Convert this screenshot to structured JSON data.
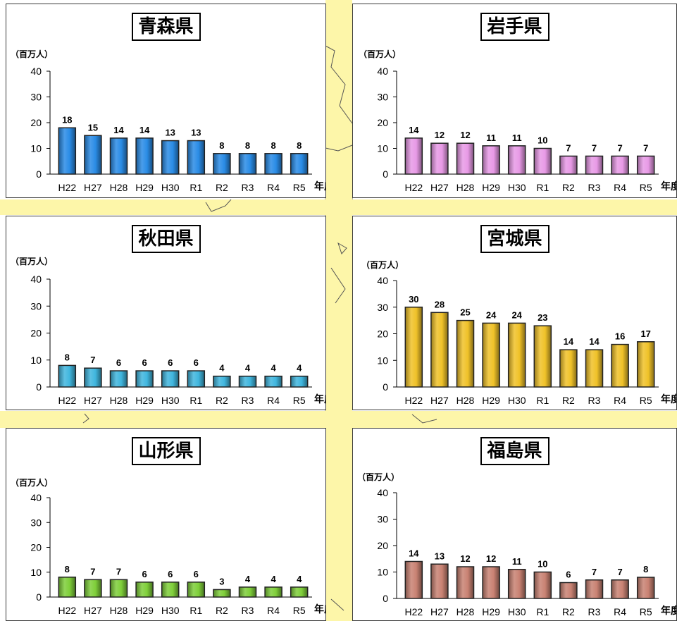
{
  "colors": {
    "background": "#ffffff",
    "map_land": "#fdf6a9",
    "bar_outline": "#222222"
  },
  "chart_data": [
    {
      "type": "bar",
      "title": "青森県",
      "unit": "（百万人）",
      "xlabel": "年度",
      "categories": [
        "H22",
        "H27",
        "H28",
        "H29",
        "H30",
        "R1",
        "R2",
        "R3",
        "R4",
        "R5"
      ],
      "values": [
        18,
        15,
        14,
        14,
        13,
        13,
        8,
        8,
        8,
        8
      ],
      "ylim": [
        0,
        40
      ],
      "yticks": [
        0,
        10,
        20,
        30,
        40
      ],
      "color": "#2a8ce6"
    },
    {
      "type": "bar",
      "title": "岩手県",
      "unit": "（百万人）",
      "xlabel": "年度",
      "categories": [
        "H22",
        "H27",
        "H28",
        "H29",
        "H30",
        "R1",
        "R2",
        "R3",
        "R4",
        "R5"
      ],
      "values": [
        14,
        12,
        12,
        11,
        11,
        10,
        7,
        7,
        7,
        7
      ],
      "ylim": [
        0,
        40
      ],
      "yticks": [
        0,
        10,
        20,
        30,
        40
      ],
      "color": "#e89ae6"
    },
    {
      "type": "bar",
      "title": "秋田県",
      "unit": "（百万人）",
      "xlabel": "年度",
      "categories": [
        "H22",
        "H27",
        "H28",
        "H29",
        "H30",
        "R1",
        "R2",
        "R3",
        "R4",
        "R5"
      ],
      "values": [
        8,
        7,
        6,
        6,
        6,
        6,
        4,
        4,
        4,
        4
      ],
      "ylim": [
        0,
        40
      ],
      "yticks": [
        0,
        10,
        20,
        30,
        40
      ],
      "color": "#40b6de"
    },
    {
      "type": "bar",
      "title": "宮城県",
      "unit": "（百万人）",
      "xlabel": "年度",
      "categories": [
        "H22",
        "H27",
        "H28",
        "H29",
        "H30",
        "R1",
        "R2",
        "R3",
        "R4",
        "R5"
      ],
      "values": [
        30,
        28,
        25,
        24,
        24,
        23,
        14,
        14,
        16,
        17
      ],
      "ylim": [
        0,
        40
      ],
      "yticks": [
        0,
        10,
        20,
        30,
        40
      ],
      "color": "#f0c229"
    },
    {
      "type": "bar",
      "title": "山形県",
      "unit": "（百万人）",
      "xlabel": "年度",
      "categories": [
        "H22",
        "H27",
        "H28",
        "H29",
        "H30",
        "R1",
        "R2",
        "R3",
        "R4",
        "R5"
      ],
      "values": [
        8,
        7,
        7,
        6,
        6,
        6,
        3,
        4,
        4,
        4
      ],
      "ylim": [
        0,
        40
      ],
      "yticks": [
        0,
        10,
        20,
        30,
        40
      ],
      "color": "#7fcf3a"
    },
    {
      "type": "bar",
      "title": "福島県",
      "unit": "（百万人）",
      "xlabel": "年度",
      "categories": [
        "H22",
        "H27",
        "H28",
        "H29",
        "H30",
        "R1",
        "R2",
        "R3",
        "R4",
        "R5"
      ],
      "values": [
        14,
        13,
        12,
        12,
        11,
        10,
        6,
        7,
        7,
        8
      ],
      "ylim": [
        0,
        40
      ],
      "yticks": [
        0,
        10,
        20,
        30,
        40
      ],
      "color": "#c98273"
    }
  ]
}
